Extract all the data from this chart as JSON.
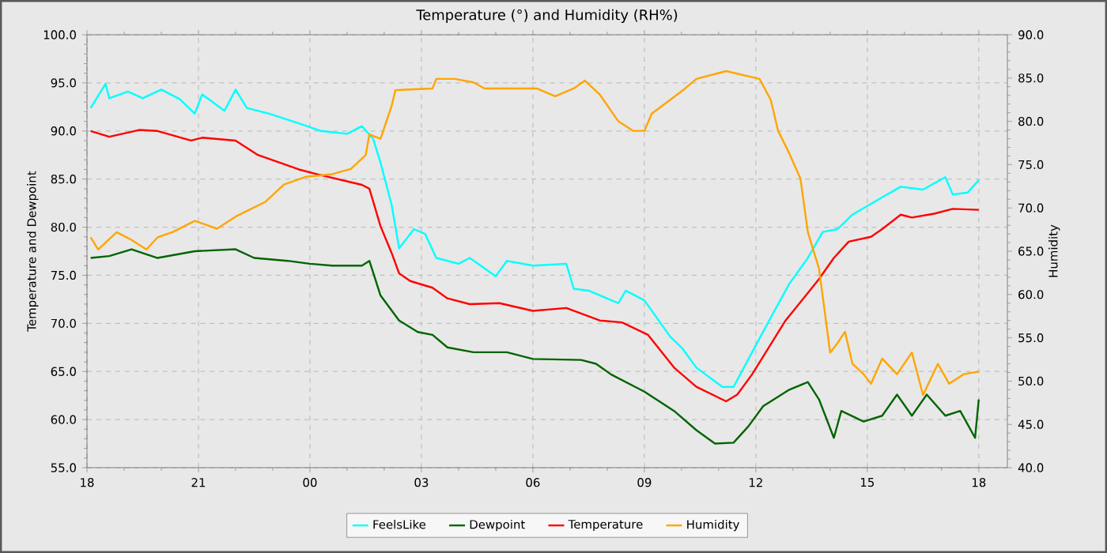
{
  "chart_data": {
    "type": "line",
    "title": "Temperature (°) and Humidity (RH%)",
    "ylabel": "Temperature and Dewpoint",
    "y2label": "Humidity",
    "xlim": [
      18,
      42.77
    ],
    "xticks": [
      {
        "value": 18,
        "label": "18"
      },
      {
        "value": 21,
        "label": "21"
      },
      {
        "value": 24,
        "label": "00"
      },
      {
        "value": 27,
        "label": "03"
      },
      {
        "value": 30,
        "label": "06"
      },
      {
        "value": 33,
        "label": "09"
      },
      {
        "value": 36,
        "label": "12"
      },
      {
        "value": 39,
        "label": "15"
      },
      {
        "value": 42,
        "label": "18"
      }
    ],
    "ylim": [
      55,
      100
    ],
    "yticks": [
      {
        "value": 55,
        "label": "55.0"
      },
      {
        "value": 60,
        "label": "60.0"
      },
      {
        "value": 65,
        "label": "65.0"
      },
      {
        "value": 70,
        "label": "70.0"
      },
      {
        "value": 75,
        "label": "75.0"
      },
      {
        "value": 80,
        "label": "80.0"
      },
      {
        "value": 85,
        "label": "85.0"
      },
      {
        "value": 90,
        "label": "90.0"
      },
      {
        "value": 95,
        "label": "95.0"
      },
      {
        "value": 100,
        "label": "100.0"
      }
    ],
    "y2lim": [
      40,
      90
    ],
    "y2ticks": [
      {
        "value": 40,
        "label": "40.0"
      },
      {
        "value": 45,
        "label": "45.0"
      },
      {
        "value": 50,
        "label": "50.0"
      },
      {
        "value": 55,
        "label": "55.0"
      },
      {
        "value": 60,
        "label": "60.0"
      },
      {
        "value": 65,
        "label": "65.0"
      },
      {
        "value": 70,
        "label": "70.0"
      },
      {
        "value": 75,
        "label": "75.0"
      },
      {
        "value": 80,
        "label": "80.0"
      },
      {
        "value": 85,
        "label": "85.0"
      },
      {
        "value": 90,
        "label": "90.0"
      }
    ],
    "grid": true,
    "legend": "bottom",
    "series": [
      {
        "name": "FeelsLike",
        "color": "#00ffff",
        "x": [
          18.1,
          18.5,
          18.6,
          19.1,
          19.5,
          20,
          20.5,
          20.9,
          21.1,
          21.7,
          22,
          22.3,
          22.9,
          23.7,
          24.3,
          25,
          25.4,
          25.7,
          25.9,
          26.2,
          26.4,
          26.8,
          27.1,
          27.4,
          28,
          28.3,
          29,
          29.3,
          30,
          30.9,
          31.1,
          31.5,
          32.3,
          32.5,
          33,
          33.7,
          34,
          34.4,
          35.1,
          35.4,
          35.9,
          36.5,
          36.9,
          37.4,
          37.8,
          38.2,
          38.6,
          39.4,
          39.9,
          40.5,
          41.1,
          41.3,
          41.7,
          42
        ],
        "values": [
          92.4,
          94.9,
          93.4,
          94.1,
          93.4,
          94.3,
          93.3,
          91.8,
          93.8,
          92.1,
          94.3,
          92.4,
          91.8,
          90.8,
          90,
          89.7,
          90.5,
          89.2,
          86.7,
          82.3,
          77.8,
          79.8,
          79.3,
          76.8,
          76.2,
          76.8,
          74.9,
          76.5,
          76,
          76.2,
          73.6,
          73.4,
          72.1,
          73.4,
          72.4,
          68.6,
          67.5,
          65.4,
          63.4,
          63.4,
          67,
          71.3,
          74.1,
          76.8,
          79.5,
          79.8,
          81.3,
          83.1,
          84.2,
          83.9,
          85.2,
          83.4,
          83.6,
          84.9
        ]
      },
      {
        "name": "Dewpoint",
        "color": "#006400",
        "x": [
          18.1,
          18.6,
          19.2,
          19.9,
          20.9,
          22,
          22.5,
          23.4,
          24,
          24.6,
          25.4,
          25.6,
          25.9,
          26.4,
          26.9,
          27.3,
          27.7,
          28.4,
          29.3,
          30,
          31.3,
          31.7,
          32.1,
          33,
          33.8,
          34.4,
          34.9,
          35.4,
          35.8,
          36.2,
          36.9,
          37.4,
          37.7,
          38.1,
          38.3,
          38.9,
          39.4,
          39.8,
          40.2,
          40.6,
          41.1,
          41.5,
          41.9,
          42
        ],
        "values": [
          76.8,
          77,
          77.7,
          76.8,
          77.5,
          77.7,
          76.8,
          76.5,
          76.2,
          76,
          76,
          76.5,
          72.9,
          70.3,
          69.1,
          68.8,
          67.5,
          67,
          67,
          66.3,
          66.2,
          65.8,
          64.7,
          62.9,
          60.9,
          58.9,
          57.5,
          57.6,
          59.3,
          61.4,
          63.1,
          63.9,
          62.1,
          58.1,
          60.9,
          59.8,
          60.4,
          62.6,
          60.4,
          62.6,
          60.4,
          60.9,
          58.1,
          62.1
        ]
      },
      {
        "name": "Temperature",
        "color": "#ff0000",
        "x": [
          18.1,
          18.6,
          19.4,
          19.9,
          20.8,
          21.1,
          22,
          22.6,
          23.7,
          24.2,
          25.4,
          25.6,
          25.9,
          26.2,
          26.4,
          26.7,
          27.3,
          27.7,
          28.3,
          29.1,
          30,
          30.9,
          31.8,
          32.4,
          33.1,
          33.8,
          34.4,
          35.2,
          35.5,
          35.9,
          36.8,
          37.7,
          38.1,
          38.5,
          39.1,
          39.4,
          39.9,
          40.2,
          40.8,
          41.3,
          42
        ],
        "values": [
          90,
          89.4,
          90.1,
          90,
          89,
          89.3,
          89,
          87.5,
          86,
          85.5,
          84.4,
          84,
          80.1,
          77.3,
          75.2,
          74.4,
          73.7,
          72.6,
          72,
          72.1,
          71.3,
          71.6,
          70.3,
          70.1,
          68.8,
          65.4,
          63.4,
          61.9,
          62.6,
          64.7,
          70.3,
          74.6,
          76.8,
          78.5,
          79,
          79.8,
          81.3,
          81,
          81.4,
          81.9,
          81.8
        ]
      },
      {
        "name": "Humidity",
        "color": "#ffa500",
        "axis": "y2",
        "x": [
          18.1,
          18.3,
          18.8,
          19.2,
          19.6,
          19.9,
          20.3,
          20.9,
          21.5,
          22,
          22.8,
          23.3,
          23.9,
          24.6,
          25.1,
          25.5,
          25.6,
          25.9,
          26.2,
          26.3,
          27.3,
          27.4,
          27.9,
          28.4,
          28.7,
          30.1,
          30.6,
          31.1,
          31.4,
          31.8,
          32.3,
          32.7,
          33,
          33.2,
          33.7,
          34.1,
          34.4,
          35.2,
          36.1,
          36.4,
          36.6,
          36.9,
          37.2,
          37.4,
          37.7,
          38,
          38.2,
          38.4,
          38.6,
          38.9,
          39.1,
          39.4,
          39.8,
          40.2,
          40.5,
          40.9,
          41.2,
          41.6,
          42
        ],
        "values": [
          66.6,
          65.2,
          67.2,
          66.3,
          65.2,
          66.6,
          67.2,
          68.5,
          67.6,
          69,
          70.7,
          72.7,
          73.6,
          73.9,
          74.5,
          76.1,
          78.5,
          78,
          81.8,
          83.6,
          83.8,
          84.9,
          84.9,
          84.5,
          83.8,
          83.8,
          82.9,
          83.8,
          84.7,
          83.1,
          80,
          78.9,
          78.9,
          80.9,
          82.5,
          83.8,
          84.9,
          85.8,
          84.9,
          82.5,
          78.9,
          76.3,
          73.4,
          67.2,
          63,
          53.3,
          54.4,
          55.7,
          52,
          50.8,
          49.7,
          52.6,
          50.8,
          53.3,
          48.4,
          52,
          49.7,
          50.8,
          51.1
        ]
      }
    ]
  }
}
